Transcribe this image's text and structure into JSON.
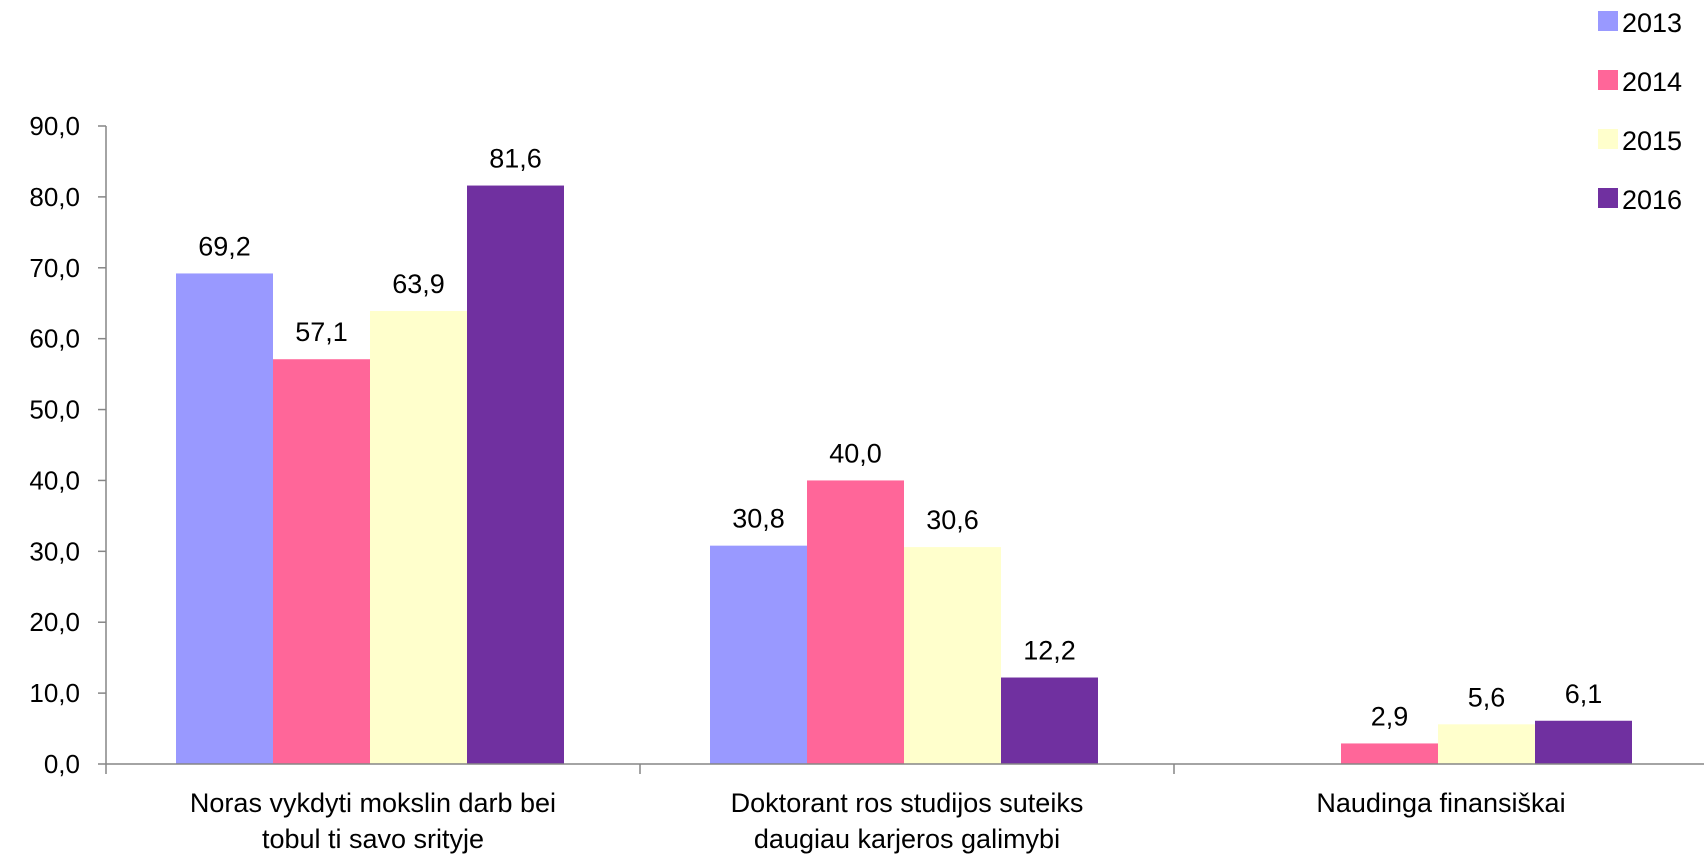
{
  "chart_data": {
    "type": "bar",
    "categories": [
      [
        "Noras vykdyti mokslin  darb   bei",
        "tobul  ti savo srityje"
      ],
      [
        "Doktorant  ros studijos suteiks",
        "daugiau karjeros galimybi"
      ],
      [
        "Naudinga finansiškai"
      ]
    ],
    "series": [
      {
        "name": "2013",
        "color": "#9999ff",
        "values": [
          69.2,
          30.8,
          null
        ],
        "labels": [
          "69,2",
          "30,8",
          ""
        ]
      },
      {
        "name": "2014",
        "color": "#ff6699",
        "values": [
          57.1,
          40.0,
          2.9
        ],
        "labels": [
          "57,1",
          "40,0",
          "2,9"
        ]
      },
      {
        "name": "2015",
        "color": "#ffffcc",
        "values": [
          63.9,
          30.6,
          5.6
        ],
        "labels": [
          "63,9",
          "30,6",
          "5,6"
        ]
      },
      {
        "name": "2016",
        "color": "#7030a0",
        "values": [
          81.6,
          12.2,
          6.1
        ],
        "labels": [
          "81,6",
          "12,2",
          "6,1"
        ]
      }
    ],
    "ylim": [
      0,
      90
    ],
    "yticks": [
      "0,0",
      "10,0",
      "20,0",
      "30,0",
      "40,0",
      "50,0",
      "60,0",
      "70,0",
      "80,0",
      "90,0"
    ],
    "title": "",
    "xlabel": "",
    "ylabel": "",
    "grid": false,
    "legend_position": "top-right"
  }
}
